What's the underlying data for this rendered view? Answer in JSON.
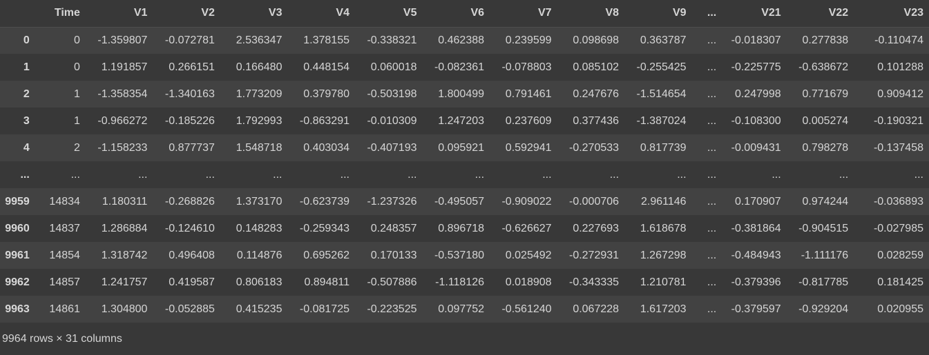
{
  "columns": [
    "Time",
    "V1",
    "V2",
    "V3",
    "V4",
    "V5",
    "V6",
    "V7",
    "V8",
    "V9",
    "...",
    "V21",
    "V22",
    "V23"
  ],
  "rows": [
    {
      "index": "0",
      "cells": [
        "0",
        "-1.359807",
        "-0.072781",
        "2.536347",
        "1.378155",
        "-0.338321",
        "0.462388",
        "0.239599",
        "0.098698",
        "0.363787",
        "...",
        "-0.018307",
        "0.277838",
        "-0.110474"
      ]
    },
    {
      "index": "1",
      "cells": [
        "0",
        "1.191857",
        "0.266151",
        "0.166480",
        "0.448154",
        "0.060018",
        "-0.082361",
        "-0.078803",
        "0.085102",
        "-0.255425",
        "...",
        "-0.225775",
        "-0.638672",
        "0.101288"
      ]
    },
    {
      "index": "2",
      "cells": [
        "1",
        "-1.358354",
        "-1.340163",
        "1.773209",
        "0.379780",
        "-0.503198",
        "1.800499",
        "0.791461",
        "0.247676",
        "-1.514654",
        "...",
        "0.247998",
        "0.771679",
        "0.909412"
      ]
    },
    {
      "index": "3",
      "cells": [
        "1",
        "-0.966272",
        "-0.185226",
        "1.792993",
        "-0.863291",
        "-0.010309",
        "1.247203",
        "0.237609",
        "0.377436",
        "-1.387024",
        "...",
        "-0.108300",
        "0.005274",
        "-0.190321"
      ]
    },
    {
      "index": "4",
      "cells": [
        "2",
        "-1.158233",
        "0.877737",
        "1.548718",
        "0.403034",
        "-0.407193",
        "0.095921",
        "0.592941",
        "-0.270533",
        "0.817739",
        "...",
        "-0.009431",
        "0.798278",
        "-0.137458"
      ]
    },
    {
      "index": "...",
      "cells": [
        "...",
        "...",
        "...",
        "...",
        "...",
        "...",
        "...",
        "...",
        "...",
        "...",
        "...",
        "...",
        "...",
        "..."
      ]
    },
    {
      "index": "9959",
      "cells": [
        "14834",
        "1.180311",
        "-0.268826",
        "1.373170",
        "-0.623739",
        "-1.237326",
        "-0.495057",
        "-0.909022",
        "-0.000706",
        "2.961146",
        "...",
        "0.170907",
        "0.974244",
        "-0.036893"
      ]
    },
    {
      "index": "9960",
      "cells": [
        "14837",
        "1.286884",
        "-0.124610",
        "0.148283",
        "-0.259343",
        "0.248357",
        "0.896718",
        "-0.626627",
        "0.227693",
        "1.618678",
        "...",
        "-0.381864",
        "-0.904515",
        "-0.027985"
      ]
    },
    {
      "index": "9961",
      "cells": [
        "14854",
        "1.318742",
        "0.496408",
        "0.114876",
        "0.695262",
        "0.170133",
        "-0.537180",
        "0.025492",
        "-0.272931",
        "1.267298",
        "...",
        "-0.484943",
        "-1.111176",
        "0.028259"
      ]
    },
    {
      "index": "9962",
      "cells": [
        "14857",
        "1.241757",
        "0.419587",
        "0.806183",
        "0.894811",
        "-0.507886",
        "-1.118126",
        "0.018908",
        "-0.343335",
        "1.210781",
        "...",
        "-0.379396",
        "-0.817785",
        "0.181425"
      ]
    },
    {
      "index": "9963",
      "cells": [
        "14861",
        "1.304800",
        "-0.052885",
        "0.415235",
        "-0.081725",
        "-0.223525",
        "0.097752",
        "-0.561240",
        "0.067228",
        "1.617203",
        "...",
        "-0.379597",
        "-0.929204",
        "0.020955"
      ]
    }
  ],
  "footer": "9964 rows × 31 columns",
  "colors": {
    "background": "#383838",
    "row_alt": "#424242",
    "text": "#d5d5d5"
  }
}
